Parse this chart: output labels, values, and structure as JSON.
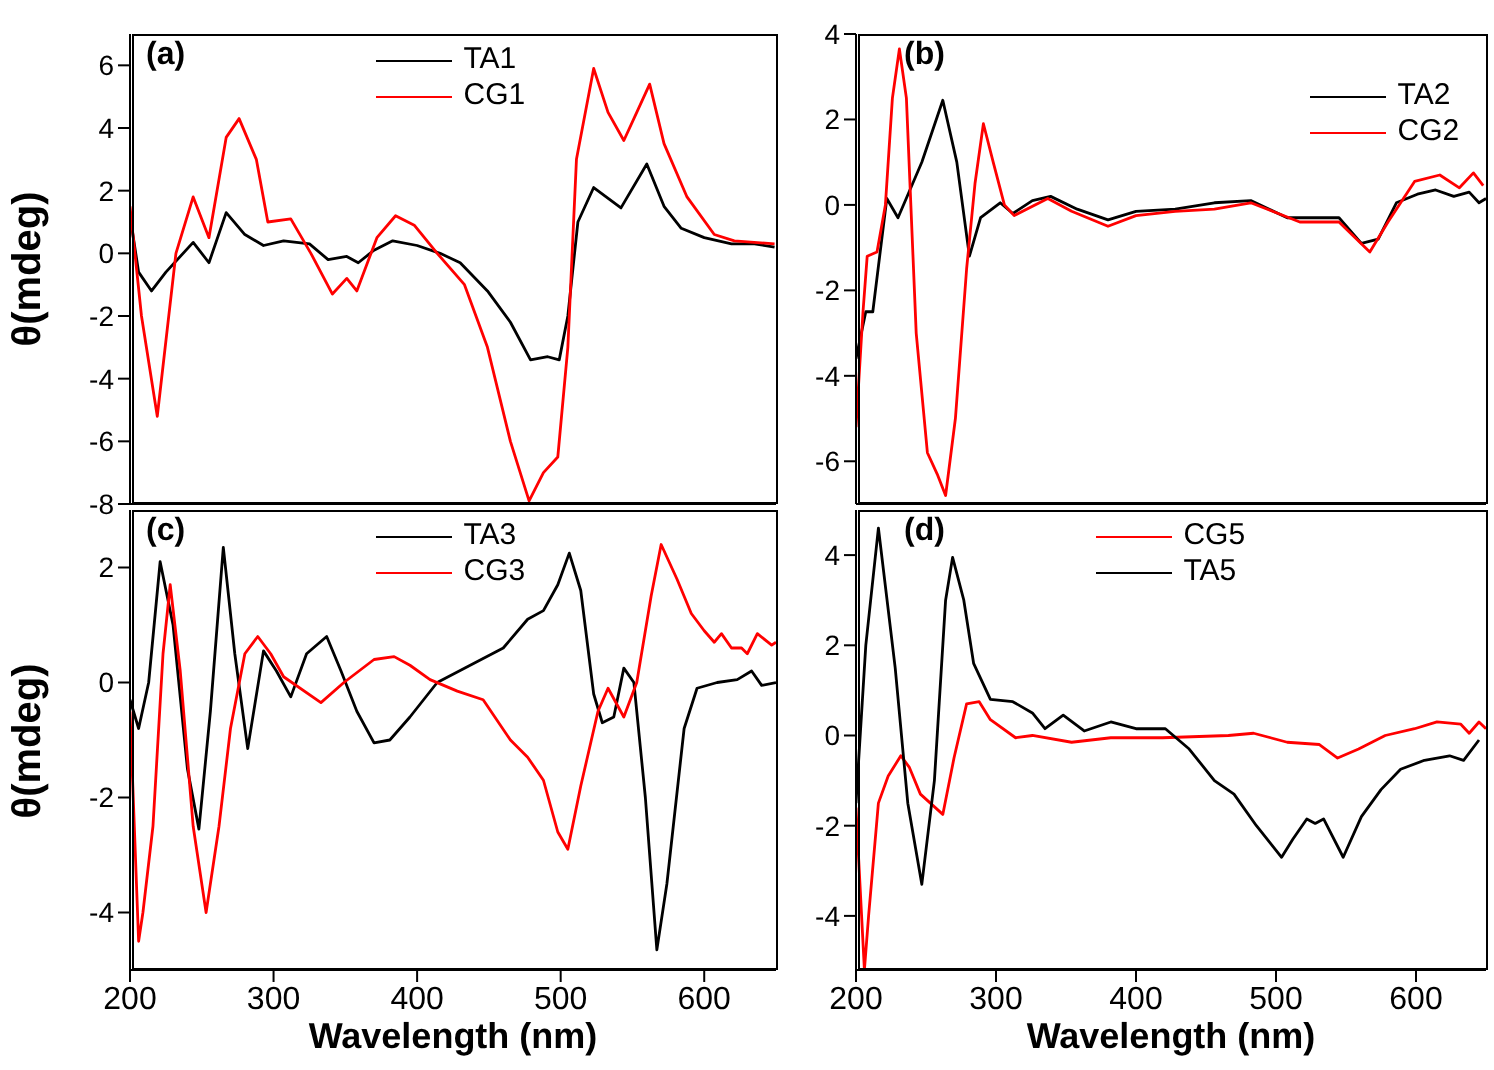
{
  "chart_data": [
    {
      "type": "line",
      "ylabel": "θ(mdeg)",
      "annotations": [
        "(a)"
      ],
      "xlim": [
        200,
        650
      ],
      "xticks": [
        200,
        300,
        400,
        500,
        600
      ],
      "ylim": [
        -8,
        7
      ],
      "yticks": [
        -8,
        -6,
        -4,
        -2,
        0,
        2,
        4,
        6
      ],
      "tick_labels": "y",
      "legend": "top",
      "marker": "none",
      "line_style": "solid",
      "series": [
        {
          "name": "TA1",
          "color": "#000000",
          "x": [
            200,
            206,
            215,
            225,
            244,
            255,
            267,
            280,
            293,
            307,
            325,
            338,
            351,
            359,
            370,
            383,
            400,
            416,
            430,
            449,
            465,
            479,
            491,
            499,
            505,
            512,
            523,
            542,
            560,
            572,
            584,
            600,
            619,
            635,
            649
          ],
          "values": [
            1.2,
            -0.6,
            -1.2,
            -0.6,
            0.35,
            -0.3,
            1.3,
            0.6,
            0.25,
            0.4,
            0.3,
            -0.2,
            -0.1,
            -0.3,
            0.1,
            0.4,
            0.25,
            0,
            -0.3,
            -1.2,
            -2.2,
            -3.4,
            -3.3,
            -3.4,
            -2,
            1,
            2.1,
            1.45,
            2.85,
            1.5,
            0.8,
            0.5,
            0.3,
            0.3,
            0.2
          ]
        },
        {
          "name": "CG1",
          "color": "#ff0000",
          "x": [
            200,
            208,
            219,
            232,
            244,
            255,
            267,
            276,
            288,
            296,
            312,
            326,
            341,
            351,
            358,
            372,
            385,
            398,
            414,
            433,
            449,
            465,
            478,
            488,
            498,
            505,
            511,
            523,
            533,
            544,
            553,
            562,
            572,
            588,
            607,
            621,
            649
          ],
          "values": [
            1.5,
            -2,
            -5.2,
            0,
            1.8,
            0.5,
            3.7,
            4.3,
            3,
            1,
            1.1,
            0,
            -1.3,
            -0.8,
            -1.2,
            0.5,
            1.2,
            0.9,
            0,
            -1,
            -3,
            -6,
            -7.9,
            -7,
            -6.5,
            -3,
            3,
            5.9,
            4.5,
            3.6,
            4.5,
            5.4,
            3.5,
            1.8,
            0.6,
            0.4,
            0.3
          ]
        }
      ]
    },
    {
      "type": "line",
      "annotations": [
        "(b)"
      ],
      "xlim": [
        200,
        650
      ],
      "xticks": [
        200,
        300,
        400,
        500,
        600
      ],
      "ylim": [
        -7,
        4
      ],
      "yticks": [
        -6,
        -4,
        -2,
        0,
        2,
        4
      ],
      "tick_labels": "y",
      "legend": "top right",
      "marker": "none",
      "line_style": "solid",
      "series": [
        {
          "name": "TA2",
          "color": "#000000",
          "x": [
            200,
            207,
            212,
            222,
            230,
            247,
            262,
            272,
            281,
            289,
            303,
            312,
            326,
            339,
            358,
            380,
            400,
            428,
            456,
            482,
            508,
            545,
            561,
            573,
            586,
            601,
            614,
            627,
            638,
            645,
            650
          ],
          "values": [
            -3.6,
            -2.5,
            -2.5,
            0.15,
            -0.3,
            1,
            2.45,
            1,
            -1.2,
            -0.3,
            0.05,
            -0.2,
            0.1,
            0.2,
            -0.1,
            -0.35,
            -0.15,
            -0.1,
            0.05,
            0.1,
            -0.3,
            -0.3,
            -0.9,
            -0.8,
            0.05,
            0.25,
            0.35,
            0.2,
            0.3,
            0.05,
            0.15
          ]
        },
        {
          "name": "CG2",
          "color": "#ff0000",
          "x": [
            200,
            205,
            208,
            215,
            221,
            226,
            231,
            236,
            243,
            251,
            258,
            264,
            271,
            279,
            285,
            291,
            298,
            306,
            313,
            337,
            354,
            380,
            400,
            428,
            456,
            482,
            517,
            545,
            567,
            580,
            599,
            617,
            631,
            641,
            648
          ],
          "values": [
            -5.2,
            -2.5,
            -1.2,
            -1.1,
            0,
            2.5,
            3.65,
            2.5,
            -3,
            -5.8,
            -6.3,
            -6.8,
            -5,
            -1.5,
            0.5,
            1.9,
            1,
            0,
            -0.25,
            0.15,
            -0.15,
            -0.5,
            -0.25,
            -0.15,
            -0.1,
            0.05,
            -0.4,
            -0.4,
            -1.1,
            -0.4,
            0.55,
            0.7,
            0.4,
            0.75,
            0.45
          ]
        }
      ]
    },
    {
      "type": "line",
      "ylabel": "θ(mdeg)",
      "xlabel": "Wavelength (nm)",
      "annotations": [
        "(c)"
      ],
      "xlim": [
        200,
        650
      ],
      "xticks": [
        200,
        300,
        400,
        500,
        600
      ],
      "ylim": [
        -5,
        3
      ],
      "yticks": [
        -4,
        -2,
        0,
        2
      ],
      "legend": "top",
      "marker": "none",
      "line_style": "solid",
      "series": [
        {
          "name": "TA3",
          "color": "#000000",
          "x": [
            200,
            206,
            213,
            221,
            230,
            240,
            248,
            256,
            265,
            273,
            282,
            293,
            302,
            312,
            323,
            337,
            347,
            358,
            370,
            381,
            395,
            414,
            437,
            460,
            477,
            488,
            498,
            506,
            514,
            523,
            529,
            537,
            544,
            551,
            559,
            567,
            574,
            586,
            595,
            609,
            623,
            633,
            640,
            650
          ],
          "values": [
            -0.3,
            -0.8,
            0,
            2.1,
            1,
            -1.5,
            -2.55,
            -0.5,
            2.35,
            0.5,
            -1.15,
            0.55,
            0.2,
            -0.25,
            0.5,
            0.8,
            0.2,
            -0.5,
            -1.05,
            -1,
            -0.6,
            0,
            0.3,
            0.6,
            1.1,
            1.25,
            1.7,
            2.25,
            1.6,
            -0.2,
            -0.7,
            -0.6,
            0.25,
            0,
            -2,
            -4.65,
            -3.5,
            -0.8,
            -0.1,
            0,
            0.05,
            0.2,
            -0.05,
            0
          ]
        },
        {
          "name": "CG3",
          "color": "#ff0000",
          "x": [
            200,
            206,
            209,
            216,
            223,
            228,
            235,
            244,
            253,
            262,
            270,
            280,
            289,
            298,
            307,
            333,
            349,
            370,
            384,
            395,
            409,
            428,
            446,
            465,
            477,
            488,
            498,
            505,
            514,
            526,
            533,
            544,
            553,
            563,
            570,
            581,
            591,
            600,
            607,
            612,
            619,
            626,
            630,
            637,
            647,
            650
          ],
          "values": [
            -0.5,
            -4.5,
            -4,
            -2.5,
            0.5,
            1.7,
            0.2,
            -2.5,
            -4,
            -2.5,
            -0.8,
            0.5,
            0.8,
            0.5,
            0.1,
            -0.35,
            0,
            0.4,
            0.45,
            0.3,
            0.05,
            -0.15,
            -0.3,
            -1,
            -1.3,
            -1.7,
            -2.6,
            -2.9,
            -1.8,
            -0.5,
            -0.1,
            -0.6,
            0,
            1.5,
            2.4,
            1.8,
            1.2,
            0.9,
            0.7,
            0.85,
            0.6,
            0.6,
            0.5,
            0.85,
            0.65,
            0.7
          ]
        }
      ]
    },
    {
      "type": "line",
      "xlabel": "Wavelength (nm)",
      "annotations": [
        "(d)"
      ],
      "xlim": [
        200,
        650
      ],
      "xticks": [
        200,
        300,
        400,
        500,
        600
      ],
      "ylim": [
        -5.2,
        5
      ],
      "yticks": [
        -4,
        -2,
        0,
        2,
        4
      ],
      "legend": "top",
      "marker": "none",
      "line_style": "solid",
      "series": [
        {
          "name": "CG5",
          "color": "#ff0000",
          "x": [
            200,
            204,
            206,
            209,
            216,
            223,
            232,
            238,
            246,
            262,
            270,
            279,
            288,
            296,
            314,
            326,
            354,
            382,
            419,
            466,
            484,
            508,
            531,
            544,
            559,
            578,
            599,
            615,
            632,
            638,
            645,
            650
          ],
          "values": [
            -1.6,
            -4,
            -5.2,
            -4,
            -1.5,
            -0.9,
            -0.45,
            -0.7,
            -1.3,
            -1.75,
            -0.5,
            0.7,
            0.75,
            0.35,
            -0.05,
            0,
            -0.15,
            -0.05,
            -0.05,
            0,
            0.05,
            -0.15,
            -0.2,
            -0.5,
            -0.3,
            0,
            0.15,
            0.3,
            0.25,
            0.05,
            0.3,
            0.15
          ]
        },
        {
          "name": "TA5",
          "color": "#000000",
          "x": [
            200,
            207,
            216,
            228,
            237,
            247,
            256,
            264,
            269,
            277,
            284,
            296,
            312,
            326,
            335,
            348,
            363,
            382,
            400,
            421,
            438,
            456,
            470,
            486,
            504,
            512,
            522,
            528,
            534,
            548,
            561,
            575,
            589,
            606,
            624,
            634,
            645
          ],
          "values": [
            -1.5,
            2,
            4.6,
            1.5,
            -1.5,
            -3.3,
            -1,
            3,
            3.95,
            3,
            1.6,
            0.8,
            0.75,
            0.5,
            0.15,
            0.45,
            0.1,
            0.3,
            0.15,
            0.15,
            -0.3,
            -1,
            -1.3,
            -2,
            -2.7,
            -2.3,
            -1.85,
            -1.95,
            -1.85,
            -2.7,
            -1.8,
            -1.2,
            -0.75,
            -0.55,
            -0.45,
            -0.55,
            -0.1
          ]
        }
      ]
    }
  ]
}
